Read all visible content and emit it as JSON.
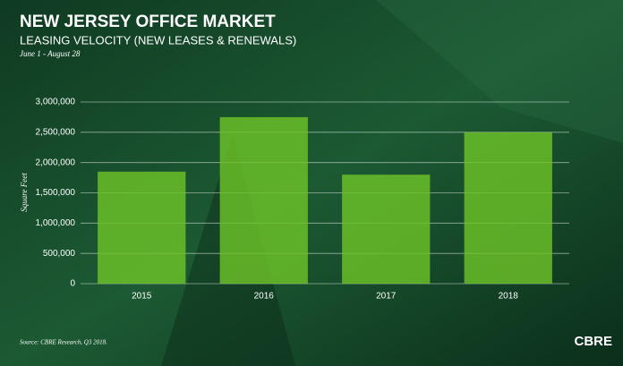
{
  "chart_data": {
    "type": "bar",
    "title": "NEW JERSEY OFFICE MARKET",
    "subtitle": "LEASING VELOCITY (NEW LEASES & RENEWALS)",
    "date_range": "June 1 - August 28",
    "y_label": "Square Feet",
    "source": "Source: CBRE Research, Q3 2018.",
    "logo": "CBRE",
    "categories": [
      "2015",
      "2016",
      "2017",
      "2018"
    ],
    "values": [
      1850000,
      2750000,
      1800000,
      2500000
    ],
    "color": "#6cc228",
    "ylim": [
      0,
      3000000
    ],
    "yticks": [
      0,
      {
        "value": 500000,
        "label": "500,000"
      },
      {
        "value": 1000000,
        "label": "1,000,000"
      },
      {
        "value": 1500000,
        "label": "1,500,000"
      },
      {
        "value": 2000000,
        "label": "2,000,000"
      },
      {
        "value": 2500000,
        "label": "2,500,000"
      },
      {
        "value": 3000000,
        "label": "3,000,000"
      }
    ],
    "grid": true
  }
}
